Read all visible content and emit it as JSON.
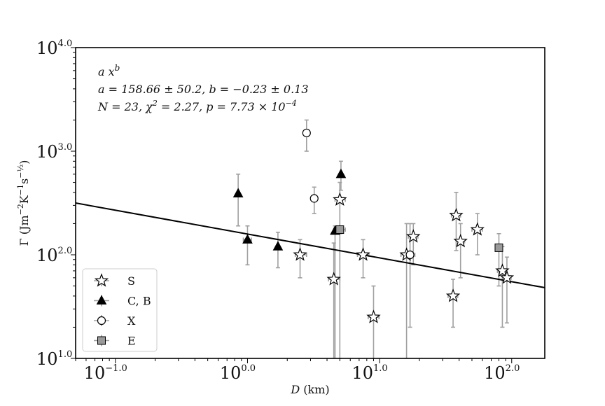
{
  "chart_data": {
    "type": "scatter",
    "xscale": "log",
    "yscale": "log",
    "xlim": [
      0.05,
      178
    ],
    "ylim": [
      10,
      10000
    ],
    "xlabel": "D (km)",
    "ylabel": "Γ (Jm⁻²K⁻¹s⁻½)",
    "x_ticks": [
      {
        "value": 0.1,
        "base": "10",
        "exp": "−1.0"
      },
      {
        "value": 1,
        "base": "10",
        "exp": "0.0"
      },
      {
        "value": 10,
        "base": "10",
        "exp": "1.0"
      },
      {
        "value": 100,
        "base": "10",
        "exp": "2.0"
      }
    ],
    "y_ticks": [
      {
        "value": 10,
        "base": "10",
        "exp": "1.0"
      },
      {
        "value": 100,
        "base": "10",
        "exp": "2.0"
      },
      {
        "value": 1000,
        "base": "10",
        "exp": "3.0"
      },
      {
        "value": 10000,
        "base": "10",
        "exp": "4.0"
      }
    ],
    "fit": {
      "a": 158.66,
      "b": -0.23
    },
    "annotations": [
      "a x^b",
      "a = 158.66 ± 50.2, b = −0.23 ± 0.13",
      "N = 23, χ² = 2.27, p = 7.73 × 10⁻⁴"
    ],
    "legend": {
      "position": "lower-left"
    },
    "series": [
      {
        "name": "S",
        "marker": "star",
        "color": "#ffffff",
        "points": [
          {
            "x": 2.5,
            "y": 100,
            "ylo": 60,
            "yhi": 140,
            "xlo": 2.3,
            "xhi": 2.8
          },
          {
            "x": 4.5,
            "y": 58,
            "ylo": 10,
            "yhi": 130,
            "xlo": 4.1,
            "xhi": 5.0
          },
          {
            "x": 5.0,
            "y": 340,
            "ylo": 160,
            "yhi": 500,
            "xlo": 4.6,
            "xhi": 5.5
          },
          {
            "x": 7.5,
            "y": 100,
            "ylo": 60,
            "yhi": 140,
            "xlo": 6.8,
            "xhi": 8.3
          },
          {
            "x": 9.0,
            "y": 25,
            "ylo": 10,
            "yhi": 50,
            "xlo": 8.2,
            "xhi": 9.9
          },
          {
            "x": 16.0,
            "y": 100,
            "ylo": 10,
            "yhi": 200,
            "xlo": 14.5,
            "xhi": 17.5
          },
          {
            "x": 18.0,
            "y": 150,
            "ylo": 80,
            "yhi": 200,
            "xlo": 16.5,
            "xhi": 19.5
          },
          {
            "x": 36.0,
            "y": 40,
            "ylo": 20,
            "yhi": 58,
            "xlo": 33,
            "xhi": 39
          },
          {
            "x": 38.0,
            "y": 240,
            "ylo": 110,
            "yhi": 400,
            "xlo": 35,
            "xhi": 41
          },
          {
            "x": 41.0,
            "y": 135,
            "ylo": 60,
            "yhi": 200,
            "xlo": 38,
            "xhi": 44
          },
          {
            "x": 55.0,
            "y": 175,
            "ylo": 100,
            "yhi": 250,
            "xlo": 50,
            "xhi": 60
          },
          {
            "x": 85.0,
            "y": 70,
            "ylo": 20,
            "yhi": 120,
            "xlo": 78,
            "xhi": 92
          },
          {
            "x": 92.0,
            "y": 60,
            "ylo": 22,
            "yhi": 95,
            "xlo": 85,
            "xhi": 99
          }
        ]
      },
      {
        "name": "C, B",
        "marker": "triangle",
        "color": "#000000",
        "points": [
          {
            "x": 0.85,
            "y": 390,
            "ylo": 190,
            "yhi": 600,
            "xlo": 0.85,
            "xhi": 0.85
          },
          {
            "x": 1.0,
            "y": 140,
            "ylo": 80,
            "yhi": 190,
            "xlo": 0.93,
            "xhi": 1.07
          },
          {
            "x": 1.7,
            "y": 120,
            "ylo": 75,
            "yhi": 165,
            "xlo": 1.7,
            "xhi": 1.7
          },
          {
            "x": 4.6,
            "y": 170,
            "ylo": 10,
            "yhi": 190,
            "xlo": 4.6,
            "xhi": 4.6
          },
          {
            "x": 5.1,
            "y": 600,
            "ylo": 420,
            "yhi": 800,
            "xlo": 5.1,
            "xhi": 5.1
          }
        ]
      },
      {
        "name": "X",
        "marker": "circle",
        "color": "#ffffff",
        "points": [
          {
            "x": 2.8,
            "y": 1500,
            "ylo": 1000,
            "yhi": 2000,
            "xlo": 2.8,
            "xhi": 2.8
          },
          {
            "x": 3.2,
            "y": 350,
            "ylo": 250,
            "yhi": 450,
            "xlo": 3.2,
            "xhi": 3.2
          },
          {
            "x": 17.0,
            "y": 100,
            "ylo": 20,
            "yhi": 200,
            "xlo": 15.5,
            "xhi": 18.5
          }
        ]
      },
      {
        "name": "E",
        "marker": "square",
        "color": "#9a9a9a",
        "points": [
          {
            "x": 5.0,
            "y": 175,
            "ylo": 10,
            "yhi": 180,
            "xlo": 4.5,
            "xhi": 5.5
          },
          {
            "x": 80.0,
            "y": 117,
            "ylo": 50,
            "yhi": 160,
            "xlo": 80,
            "xhi": 80
          }
        ]
      }
    ]
  }
}
